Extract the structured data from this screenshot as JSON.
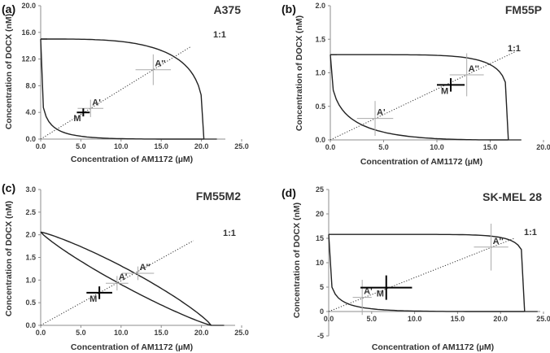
{
  "colors": {
    "axis": "#8c8c8c",
    "curve": "#222222",
    "crosshair": "#aaaaaa",
    "point_marker": "#000000",
    "background": "#ffffff"
  },
  "chart_data": [
    {
      "panel": "(a)",
      "title": "A375",
      "type": "line",
      "xlabel": "Concentration of AM1172 (µM)",
      "ylabel": "Concentration of DOCX (nM)",
      "xlim": [
        0,
        25
      ],
      "ylim": [
        0,
        20
      ],
      "xticks": [
        "0.0",
        "5.0",
        "10.0",
        "15.0",
        "20.0",
        "25.0"
      ],
      "xtick_values": [
        0,
        5,
        10,
        15,
        20,
        25
      ],
      "yticks": [
        "0.0",
        "4.0",
        "8.0",
        "12.0",
        "16.0",
        "20.0"
      ],
      "ytick_values": [
        0,
        4,
        8,
        12,
        16,
        20
      ],
      "ic": [
        20.3,
        15.0
      ],
      "mid_exp": 0.3,
      "out_exp": 3.5,
      "points": [
        {
          "label": "A'",
          "x": 6.2,
          "y": 4.6,
          "ex": 1.6,
          "ey": 1.3
        },
        {
          "label": "A''",
          "x": 14.0,
          "y": 10.4,
          "ex": 2.2,
          "ey": 2.3
        },
        {
          "label": "M",
          "x": 5.3,
          "y": 4.0,
          "ex": 0.8,
          "ey": 0.6,
          "bold": true
        }
      ],
      "line_label": "1:1",
      "line_end": [
        18.6,
        13.8
      ],
      "extra_marker": {
        "axis": "y",
        "value": 15.0
      }
    },
    {
      "panel": "(b)",
      "title": "FM55P",
      "type": "line",
      "xlabel": "Concentration of AM1172 (µM)",
      "ylabel": "Concentration of DOCX (nM)",
      "xlim": [
        0,
        20
      ],
      "ylim": [
        0,
        2
      ],
      "xticks": [
        "0.0",
        "5.0",
        "10.0",
        "15.0",
        "20.0"
      ],
      "xtick_values": [
        0,
        5,
        10,
        15,
        20
      ],
      "yticks": [
        "0.0",
        "0.5",
        "1.0",
        "1.5",
        "2.0"
      ],
      "ytick_values": [
        0,
        0.5,
        1,
        1.5,
        2
      ],
      "ic": [
        16.7,
        1.27
      ],
      "mid_exp": 0.4,
      "out_exp": 6,
      "points": [
        {
          "label": "A'",
          "x": 4.2,
          "y": 0.32,
          "ex": 1.7,
          "ey": 0.26
        },
        {
          "label": "A''",
          "x": 12.8,
          "y": 0.97,
          "ex": 1.6,
          "ey": 0.32
        },
        {
          "label": "M",
          "x": 11.3,
          "y": 0.82,
          "ex": 1.3,
          "ey": 0.1,
          "bold": true
        }
      ],
      "line_label": "1:1",
      "line_end": [
        17.3,
        1.31
      ],
      "extra_marker": {
        "axis": "y",
        "value": 1.27
      }
    },
    {
      "panel": "(c)",
      "title": "FM55M2",
      "type": "line",
      "xlabel": "Concentration of AM1172 (µM)",
      "ylabel": "Concentration of DOCX (nM)",
      "xlim": [
        0,
        25
      ],
      "ylim": [
        0,
        3
      ],
      "xticks": [
        "0.0",
        "5.0",
        "10.0",
        "15.0",
        "20.0",
        "25.0"
      ],
      "xtick_values": [
        0,
        5,
        10,
        15,
        20,
        25
      ],
      "yticks": [
        "0.0",
        "0.5",
        "1.0",
        "1.5",
        "2.0",
        "2.5",
        "3.0"
      ],
      "ytick_values": [
        0,
        0.5,
        1,
        1.5,
        2,
        2.5,
        3
      ],
      "ic": [
        21.2,
        2.06
      ],
      "mid_exp": 0.88,
      "out_exp": 1.18,
      "points": [
        {
          "label": "A'",
          "x": 9.5,
          "y": 0.93,
          "ex": 1.4,
          "ey": 0.16
        },
        {
          "label": "A''",
          "x": 12.1,
          "y": 1.15,
          "ex": 2.0,
          "ey": 0.15
        },
        {
          "label": "M",
          "x": 7.3,
          "y": 0.72,
          "ex": 1.6,
          "ey": 0.14,
          "bold": true
        }
      ],
      "line_label": "1:1",
      "line_end": [
        19.0,
        1.87
      ],
      "extra_marker": null
    },
    {
      "panel": "(d)",
      "title": "SK-MEL 28",
      "type": "line",
      "xlabel": "Concentration of AM1172 (µM)",
      "ylabel": "Concentration of DOCX (nM)",
      "xlim": [
        0,
        25
      ],
      "ylim": [
        -5,
        25
      ],
      "xticks": [
        "0.0",
        "5.0",
        "10.0",
        "15.0",
        "20.0",
        "25.0"
      ],
      "xtick_values": [
        0,
        5,
        10,
        15,
        20,
        25
      ],
      "yticks": [
        "-5",
        "0",
        "5",
        "10",
        "15",
        "20",
        "25"
      ],
      "ytick_values": [
        -5,
        0,
        5,
        10,
        15,
        20,
        25
      ],
      "ic": [
        22.8,
        15.8
      ],
      "mid_exp": 0.3,
      "out_exp": 9,
      "points": [
        {
          "label": "A'",
          "x": 3.9,
          "y": 2.9,
          "ex": 1.1,
          "ey": 3.6
        },
        {
          "label": "A''",
          "x": 18.9,
          "y": 13.2,
          "ex": 2.0,
          "ey": 4.8
        },
        {
          "label": "M",
          "x": 6.7,
          "y": 4.9,
          "ex": 3.0,
          "ey": 2.5,
          "bold": true
        }
      ],
      "line_label": "1:1",
      "line_end": [
        21.6,
        15.0
      ],
      "extra_marker": null
    }
  ]
}
